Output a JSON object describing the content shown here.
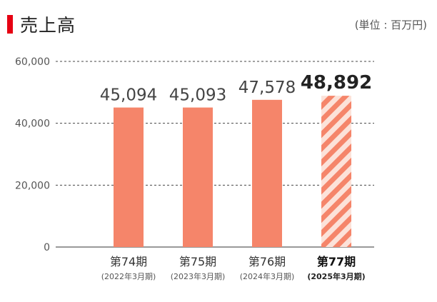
{
  "header": {
    "title": "売上高",
    "unit": "(単位 : 百万円)",
    "accent_color": "#e60012"
  },
  "chart_data": {
    "type": "bar",
    "title": "売上高",
    "xlabel": "",
    "ylabel": "",
    "ylim": [
      0,
      60000
    ],
    "y_ticks": [
      "0",
      "20,000",
      "40,000",
      "60,000"
    ],
    "grid": true,
    "categories": [
      "第74期",
      "第75期",
      "第76期",
      "第77期"
    ],
    "sublabels": [
      "(2022年3月期)",
      "(2023年3月期)",
      "(2024年3月期)",
      "(2025年3月期)"
    ],
    "values": [
      45094,
      45093,
      47578,
      48892
    ],
    "value_labels": [
      "45,094",
      "45,093",
      "47,578",
      "48,892"
    ],
    "highlight_index": 3,
    "bar_color": "#f5856a",
    "highlight_pattern_colors": [
      "#f5856a",
      "#fce2d9"
    ]
  }
}
